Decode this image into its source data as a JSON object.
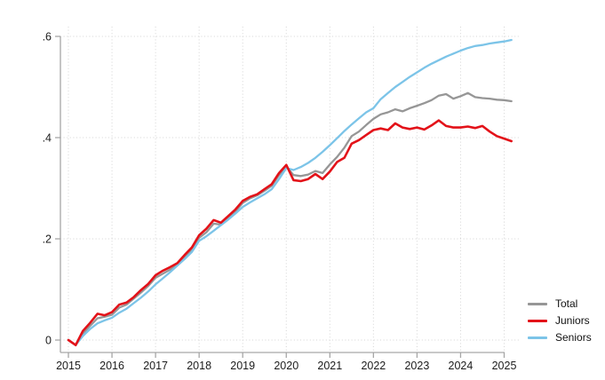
{
  "chart_data": {
    "type": "line",
    "title": "",
    "xlabel": "",
    "ylabel": "",
    "x_start_year": 2015,
    "x_step_months": 2,
    "x_tick_labels": [
      "2015",
      "2016",
      "2017",
      "2018",
      "2019",
      "2020",
      "2021",
      "2022",
      "2023",
      "2024",
      "2025"
    ],
    "x_tick_years": [
      2015,
      2016,
      2017,
      2018,
      2019,
      2020,
      2021,
      2022,
      2023,
      2024,
      2025
    ],
    "y_ticks": [
      0,
      0.2,
      0.4,
      0.6
    ],
    "y_tick_labels": [
      "0",
      ".2",
      ".4",
      ".6"
    ],
    "ylim": [
      -0.025,
      0.625
    ],
    "grid": "dotted-both",
    "legend_position": "right-outside-bottom",
    "axis_color": "#a6a6a6",
    "grid_color": "#d4d4d4",
    "tick_label_color": "#1c1c1c",
    "series": [
      {
        "name": "Total",
        "color": "#969696",
        "width": 2.3,
        "values": [
          0.0,
          -0.01,
          0.013,
          0.028,
          0.043,
          0.046,
          0.05,
          0.064,
          0.07,
          0.082,
          0.094,
          0.107,
          0.123,
          0.131,
          0.139,
          0.148,
          0.162,
          0.178,
          0.202,
          0.213,
          0.23,
          0.228,
          0.24,
          0.254,
          0.271,
          0.28,
          0.286,
          0.295,
          0.305,
          0.326,
          0.343,
          0.326,
          0.324,
          0.327,
          0.334,
          0.33,
          0.347,
          0.362,
          0.38,
          0.403,
          0.412,
          0.425,
          0.437,
          0.446,
          0.45,
          0.456,
          0.452,
          0.458,
          0.463,
          0.468,
          0.474,
          0.483,
          0.486,
          0.477,
          0.482,
          0.488,
          0.48,
          0.478,
          0.477,
          0.475,
          0.474,
          0.472
        ]
      },
      {
        "name": "Juniors",
        "color": "#e31219",
        "width": 2.6,
        "values": [
          0.0,
          -0.01,
          0.018,
          0.034,
          0.052,
          0.049,
          0.055,
          0.07,
          0.074,
          0.085,
          0.099,
          0.111,
          0.128,
          0.137,
          0.144,
          0.152,
          0.168,
          0.183,
          0.207,
          0.22,
          0.237,
          0.232,
          0.245,
          0.258,
          0.275,
          0.283,
          0.288,
          0.298,
          0.308,
          0.33,
          0.346,
          0.316,
          0.314,
          0.318,
          0.328,
          0.318,
          0.333,
          0.352,
          0.36,
          0.388,
          0.395,
          0.405,
          0.415,
          0.418,
          0.415,
          0.428,
          0.42,
          0.417,
          0.42,
          0.416,
          0.424,
          0.434,
          0.423,
          0.42,
          0.42,
          0.422,
          0.419,
          0.423,
          0.412,
          0.403,
          0.398,
          0.393
        ]
      },
      {
        "name": "Seniors",
        "color": "#7cc4e8",
        "width": 2.3,
        "values": [
          0.0,
          -0.01,
          0.008,
          0.022,
          0.033,
          0.039,
          0.044,
          0.054,
          0.062,
          0.073,
          0.084,
          0.096,
          0.11,
          0.122,
          0.134,
          0.147,
          0.16,
          0.174,
          0.196,
          0.205,
          0.216,
          0.227,
          0.238,
          0.25,
          0.263,
          0.272,
          0.28,
          0.288,
          0.298,
          0.318,
          0.34,
          0.336,
          0.342,
          0.35,
          0.36,
          0.372,
          0.385,
          0.399,
          0.413,
          0.426,
          0.438,
          0.45,
          0.458,
          0.476,
          0.488,
          0.5,
          0.51,
          0.52,
          0.529,
          0.538,
          0.546,
          0.553,
          0.56,
          0.566,
          0.572,
          0.577,
          0.581,
          0.583,
          0.586,
          0.588,
          0.59,
          0.593
        ]
      }
    ],
    "draw_order": [
      0,
      2,
      1
    ]
  },
  "legend": {
    "items": [
      "Total",
      "Juniors",
      "Seniors"
    ]
  }
}
